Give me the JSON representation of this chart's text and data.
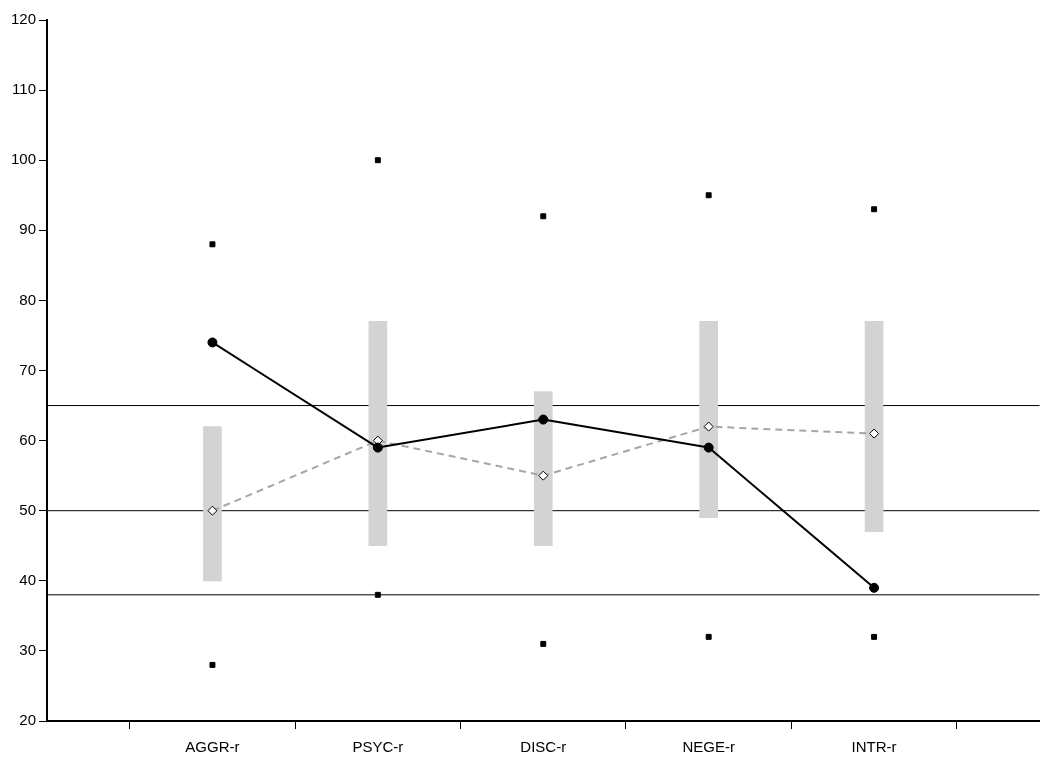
{
  "chart_data": {
    "type": "line",
    "categories": [
      "AGGR-r",
      "PSYC-r",
      "DISC-r",
      "NEGE-r",
      "INTR-r"
    ],
    "series": [
      {
        "type": "bar",
        "color": "#d3d3d3",
        "base": [
          40,
          45,
          45,
          49,
          47
        ],
        "values": [
          22,
          32,
          22,
          28,
          30
        ]
      },
      {
        "type": "scatter",
        "color": "#000000",
        "marker": "square",
        "values": [
          88,
          100,
          92,
          95,
          93
        ]
      },
      {
        "type": "scatter",
        "color": "#000000",
        "marker": "square",
        "values": [
          28,
          38,
          31,
          32,
          32
        ]
      },
      {
        "color": "#a6a6a6",
        "marker": "diamond",
        "line_style": "dashed",
        "values": [
          50,
          60,
          55,
          62,
          61
        ]
      },
      {
        "color": "#000000",
        "marker": "circle",
        "line_style": "solid",
        "values": [
          74,
          59,
          63,
          59,
          39
        ]
      }
    ],
    "ylim": [
      20,
      120
    ],
    "yticks": [
      20,
      30,
      40,
      50,
      60,
      70,
      80,
      90,
      100,
      110,
      120
    ],
    "grid": false,
    "legend": false,
    "ref_lines": [
      {
        "axis": "y",
        "value": 65
      },
      {
        "axis": "y",
        "value": 50
      },
      {
        "axis": "y",
        "value": 38
      }
    ]
  }
}
